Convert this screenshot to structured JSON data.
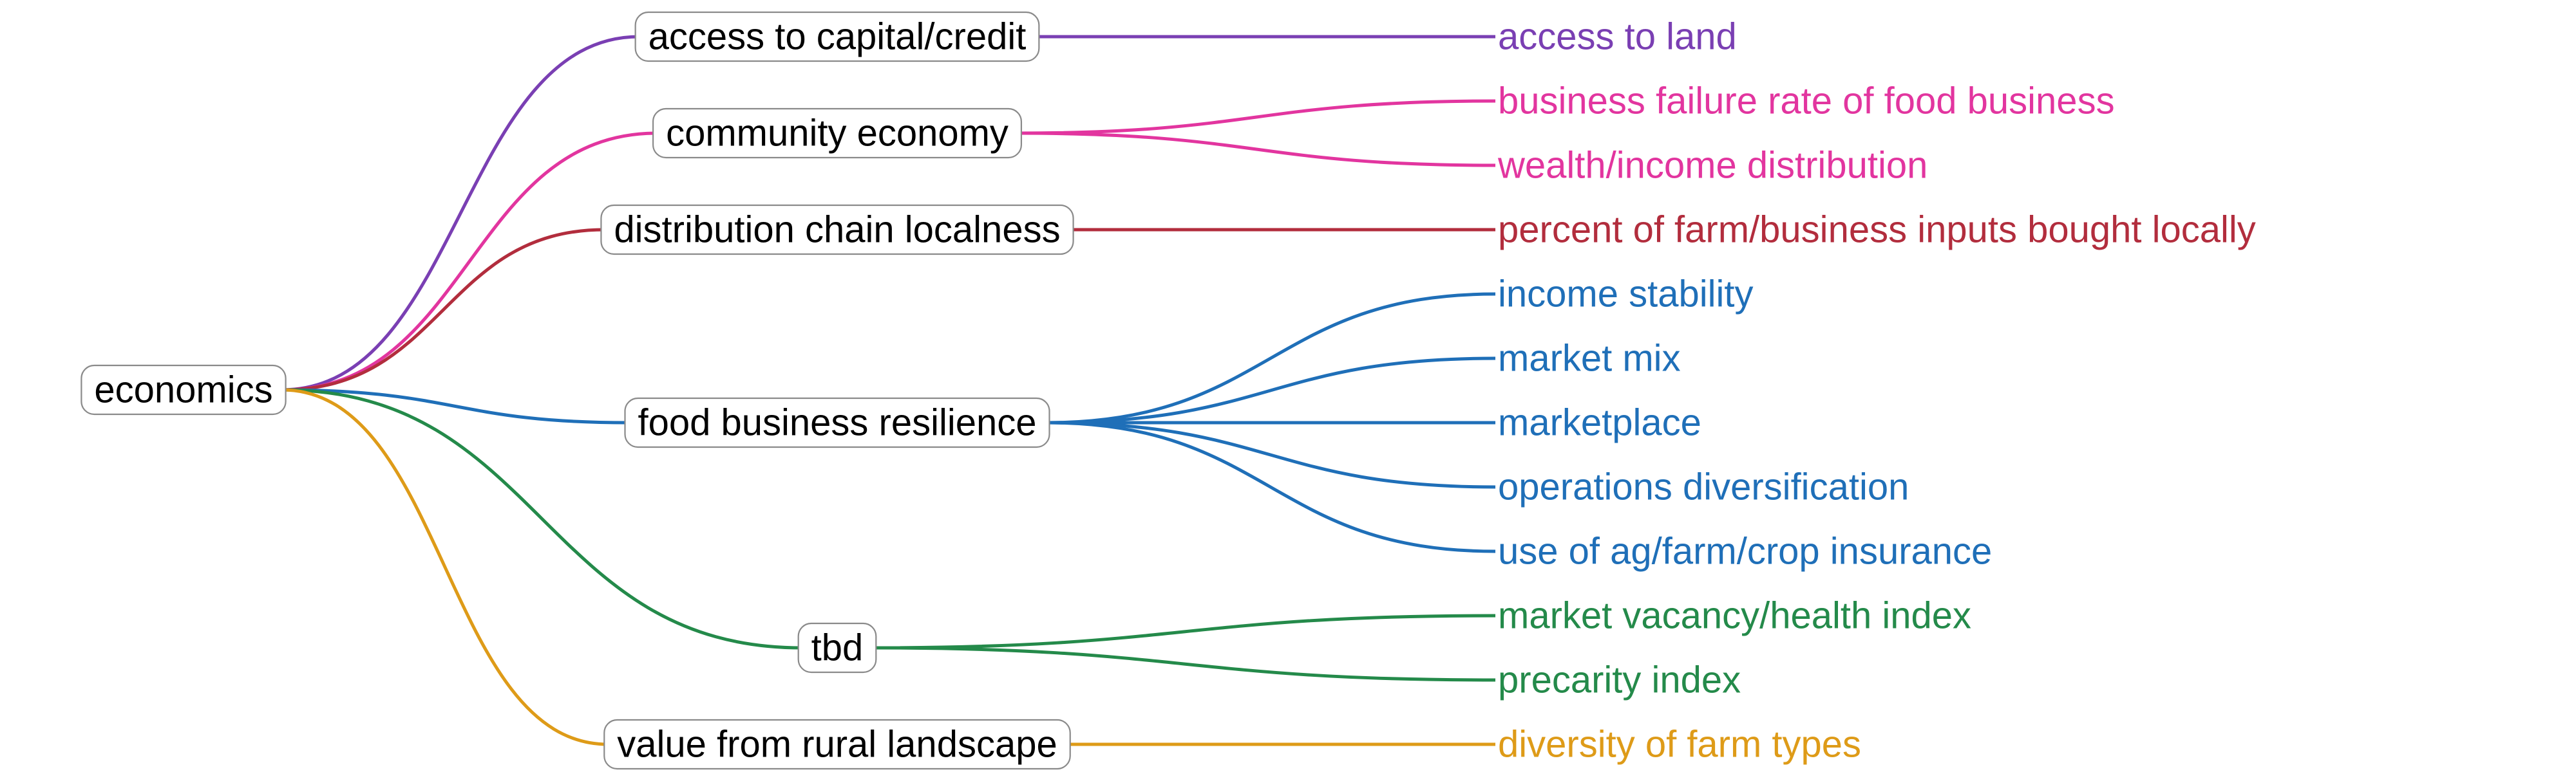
{
  "root": {
    "label": "economics"
  },
  "groups": [
    {
      "label": "access to capital/credit",
      "color": "#7a3fb3",
      "leaves": [
        "access to land"
      ]
    },
    {
      "label": "community economy",
      "color": "#e2359f",
      "leaves": [
        "business failure rate of food business",
        "wealth/income distribution"
      ]
    },
    {
      "label": "distribution chain localness",
      "color": "#b22d3d",
      "leaves": [
        "percent of farm/business inputs bought locally"
      ]
    },
    {
      "label": "food business resilience",
      "color": "#1f6fb8",
      "leaves": [
        "income stability",
        "market mix",
        "marketplace",
        "operations diversification",
        "use of ag/farm/crop insurance"
      ]
    },
    {
      "label": "tbd",
      "color": "#248a4a",
      "leaves": [
        "market vacancy/health index",
        "precarity index"
      ]
    },
    {
      "label": "value from rural landscape",
      "color": "#de9b18",
      "leaves": [
        "diversity of farm types"
      ]
    }
  ]
}
